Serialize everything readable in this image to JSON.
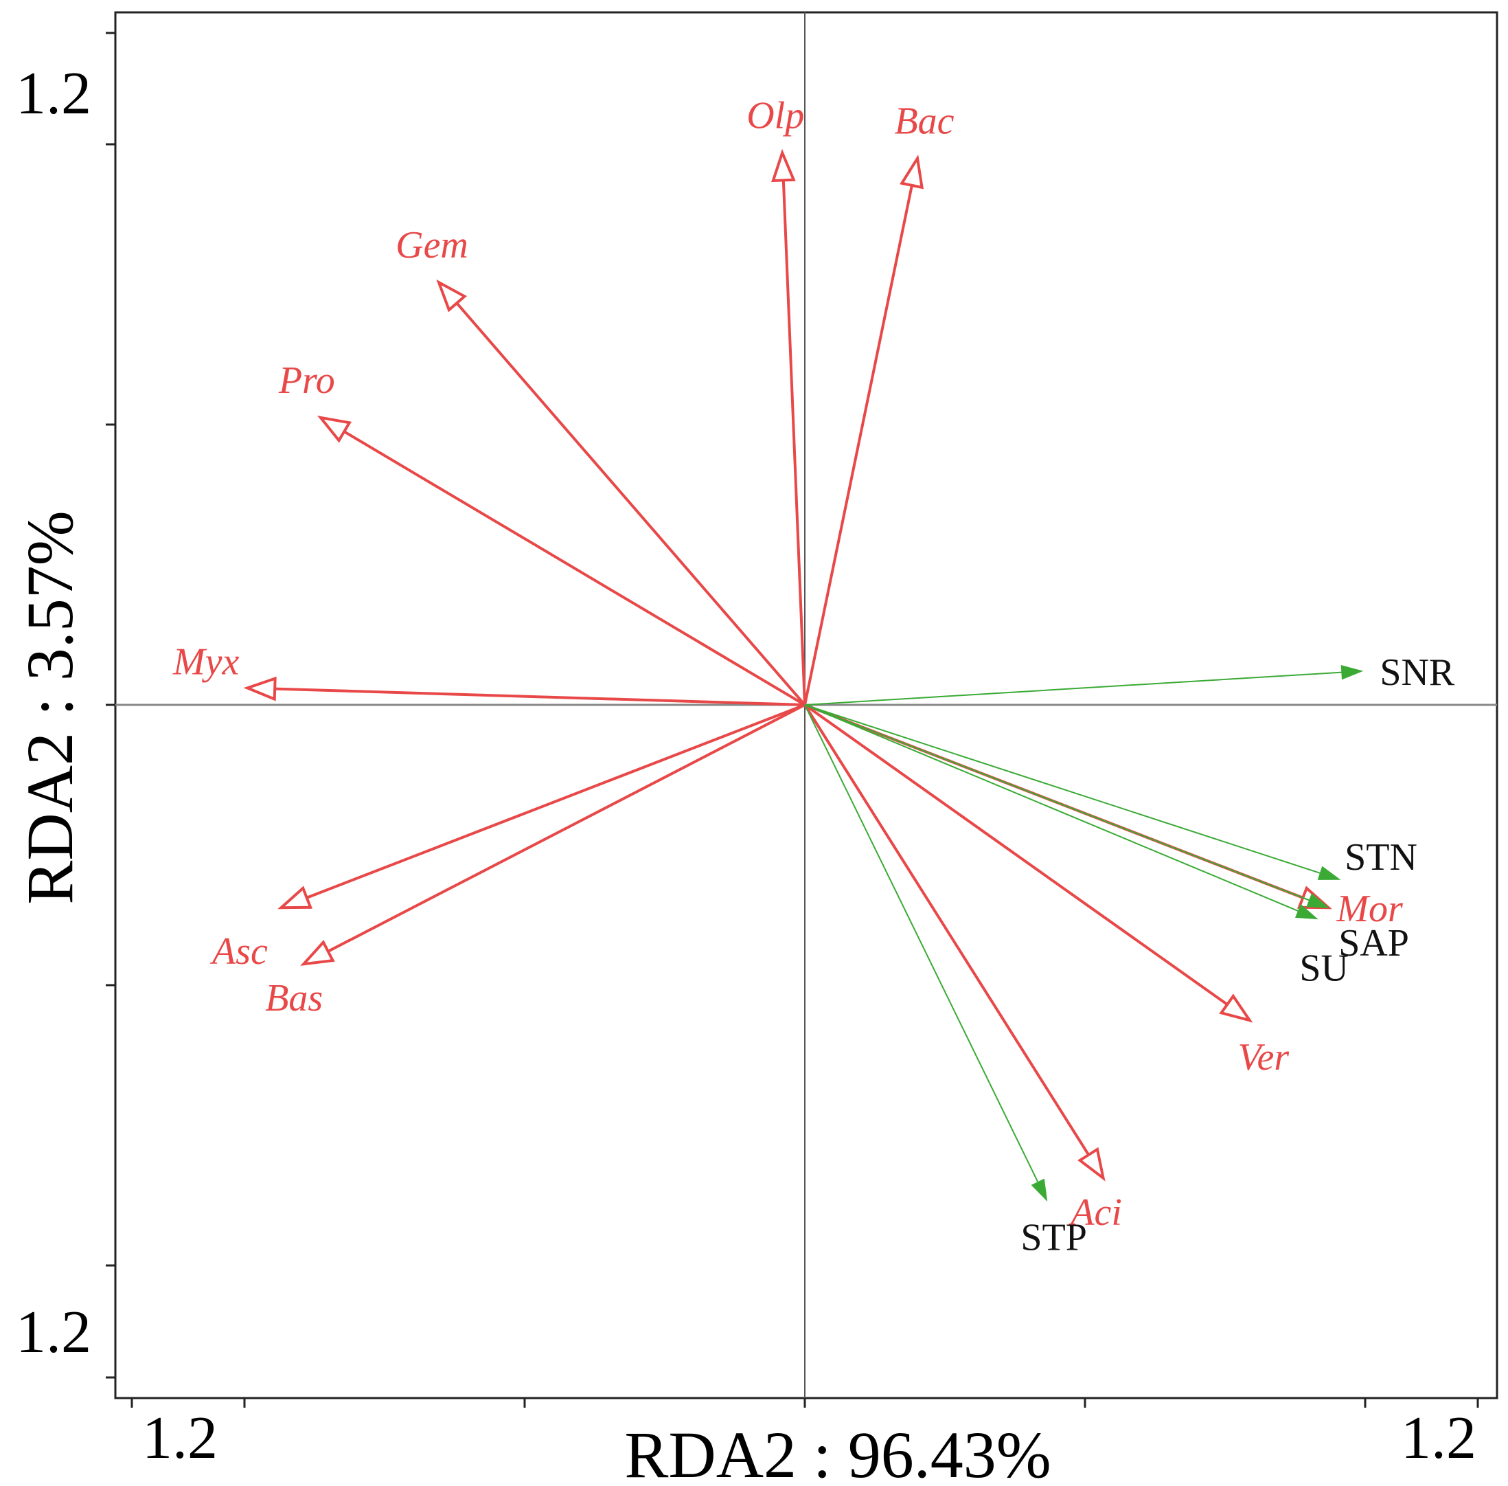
{
  "chart_data": {
    "type": "biplot",
    "xlabel": "RDA2 : 96.43%",
    "ylabel": "RDA2 : 3.57%",
    "x_tick_labels": {
      "left": "1.2",
      "right": "1.2"
    },
    "y_tick_labels": {
      "top": "1.2",
      "bottom": "1.2"
    },
    "xlim": [
      -1.2,
      1.2
    ],
    "ylim": [
      -1.2,
      1.2
    ],
    "colors": {
      "species": "#e84848",
      "environment": "#3aaa35",
      "axis": "#888888"
    },
    "species": [
      {
        "name": "Olp",
        "x": -0.04,
        "y": 0.98
      },
      {
        "name": "Bac",
        "x": 0.2,
        "y": 0.97
      },
      {
        "name": "Gem",
        "x": -0.65,
        "y": 0.75
      },
      {
        "name": "Pro",
        "x": -0.86,
        "y": 0.51
      },
      {
        "name": "Myx",
        "x": -0.99,
        "y": 0.03
      },
      {
        "name": "Asc",
        "x": -0.93,
        "y": -0.36
      },
      {
        "name": "Bas",
        "x": -0.89,
        "y": -0.46
      },
      {
        "name": "Mor",
        "x": 0.93,
        "y": -0.36
      },
      {
        "name": "Ver",
        "x": 0.79,
        "y": -0.56
      },
      {
        "name": "Aci",
        "x": 0.53,
        "y": -0.84
      }
    ],
    "environment": [
      {
        "name": "SNR",
        "x": 0.99,
        "y": 0.06
      },
      {
        "name": "STN",
        "x": 0.95,
        "y": -0.31
      },
      {
        "name": "SAP",
        "x": 0.93,
        "y": -0.36
      },
      {
        "name": "SU",
        "x": 0.91,
        "y": -0.38
      },
      {
        "name": "STP",
        "x": 0.43,
        "y": -0.88
      }
    ]
  }
}
